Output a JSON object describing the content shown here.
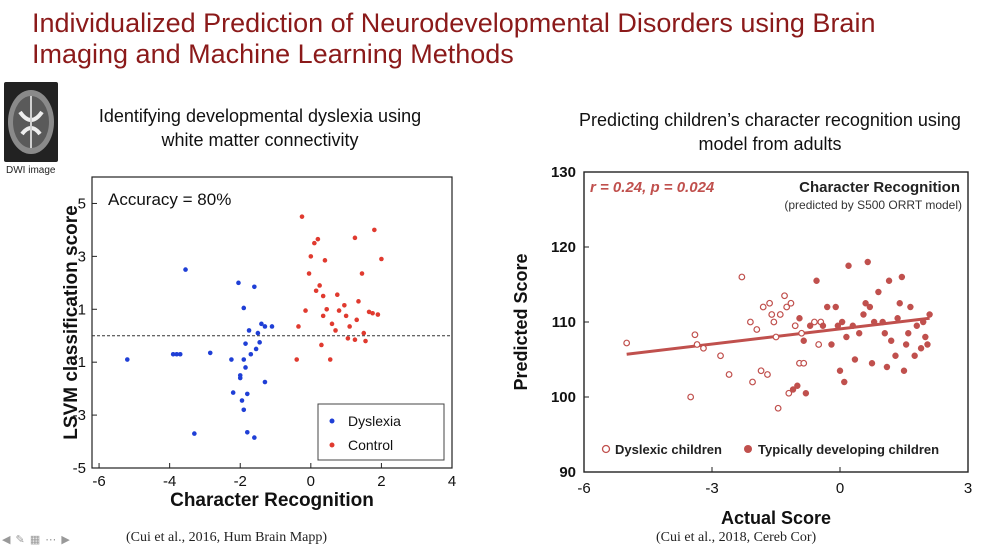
{
  "slide": {
    "title": "Individualized Prediction of Neurodevelopmental Disorders using Brain Imaging and Machine Learning Methods",
    "left_subtitle": "Identifying developmental dyslexia using white matter connectivity",
    "right_subtitle": "Predicting children’s character recognition using model from adults",
    "thumbnail_label": "DWI image",
    "left_citation": "(Cui et al., 2016, Hum Brain Mapp)",
    "right_citation": "(Cui et al., 2018, Cereb Cor)",
    "nav_icons": [
      "arrow-left-icon",
      "pencil-icon",
      "grid-icon",
      "ellipsis-icon",
      "arrow-right-icon"
    ]
  },
  "chart_data": [
    {
      "type": "scatter",
      "xlabel": "Character Recognition",
      "ylabel": "LSVM classification score",
      "xlim": [
        -6.2,
        4
      ],
      "ylim": [
        -5,
        6
      ],
      "xticks": [
        -6,
        -4,
        -2,
        0,
        2,
        4
      ],
      "yticks": [
        -5,
        -3,
        -1,
        1,
        3,
        5
      ],
      "annotation": "Accuracy = 80%",
      "threshold_line": 0,
      "legend_position": "bottom-right",
      "series": [
        {
          "name": "Dyslexia",
          "color": "#1f3fd6",
          "points": [
            [
              -5.2,
              -0.9
            ],
            [
              -3.9,
              -0.7
            ],
            [
              -3.8,
              -0.7
            ],
            [
              -3.7,
              -0.7
            ],
            [
              -3.55,
              2.5
            ],
            [
              -3.3,
              -3.7
            ],
            [
              -2.85,
              -0.65
            ],
            [
              -2.25,
              -0.9
            ],
            [
              -2.2,
              -2.15
            ],
            [
              -2.05,
              2
            ],
            [
              -2.0,
              -1.6
            ],
            [
              -2.0,
              -1.5
            ],
            [
              -1.95,
              -2.45
            ],
            [
              -1.9,
              -2.8
            ],
            [
              -1.9,
              -0.9
            ],
            [
              -1.85,
              -0.3
            ],
            [
              -1.85,
              -1.2
            ],
            [
              -1.8,
              -2.2
            ],
            [
              -1.8,
              -3.65
            ],
            [
              -1.9,
              1.05
            ],
            [
              -1.75,
              0.2
            ],
            [
              -1.7,
              -0.7
            ],
            [
              -1.6,
              -3.85
            ],
            [
              -1.6,
              1.85
            ],
            [
              -1.55,
              -0.5
            ],
            [
              -1.5,
              0.1
            ],
            [
              -1.45,
              -0.25
            ],
            [
              -1.4,
              0.45
            ],
            [
              -1.3,
              0.35
            ],
            [
              -1.3,
              -1.75
            ],
            [
              -1.1,
              0.35
            ]
          ]
        },
        {
          "name": "Control",
          "color": "#e03a2f",
          "points": [
            [
              -0.4,
              -0.9
            ],
            [
              -0.35,
              0.35
            ],
            [
              -0.25,
              4.5
            ],
            [
              -0.15,
              0.95
            ],
            [
              -0.05,
              2.35
            ],
            [
              0.0,
              3.0
            ],
            [
              0.1,
              3.5
            ],
            [
              0.15,
              1.7
            ],
            [
              0.2,
              3.65
            ],
            [
              0.25,
              1.9
            ],
            [
              0.3,
              -0.35
            ],
            [
              0.35,
              1.5
            ],
            [
              0.35,
              0.75
            ],
            [
              0.4,
              2.85
            ],
            [
              0.45,
              1.0
            ],
            [
              0.55,
              -0.9
            ],
            [
              0.6,
              0.45
            ],
            [
              0.7,
              0.2
            ],
            [
              0.75,
              1.55
            ],
            [
              0.8,
              0.95
            ],
            [
              0.95,
              1.15
            ],
            [
              1.0,
              0.75
            ],
            [
              1.05,
              -0.1
            ],
            [
              1.1,
              0.35
            ],
            [
              1.25,
              -0.15
            ],
            [
              1.25,
              3.7
            ],
            [
              1.3,
              0.6
            ],
            [
              1.35,
              1.3
            ],
            [
              1.45,
              2.35
            ],
            [
              1.5,
              0.1
            ],
            [
              1.55,
              -0.2
            ],
            [
              1.65,
              0.9
            ],
            [
              1.75,
              0.85
            ],
            [
              1.8,
              4.0
            ],
            [
              1.9,
              0.8
            ],
            [
              2.0,
              2.9
            ]
          ]
        }
      ]
    },
    {
      "type": "scatter",
      "title": "Character Recognition",
      "subtitle": "(predicted by S500 ORRT model)",
      "xlabel": "Actual Score",
      "ylabel": "Predicted Score",
      "xlim": [
        -6,
        3
      ],
      "ylim": [
        90,
        130
      ],
      "xticks": [
        -6,
        -3,
        0,
        3
      ],
      "yticks": [
        90,
        100,
        110,
        120,
        130
      ],
      "stats_label": "r = 0.24, p = 0.024",
      "fit_line": {
        "x": [
          -5.0,
          2.1
        ],
        "y": [
          105.7,
          110.5
        ],
        "color": "#c0504d"
      },
      "legend_position": "bottom",
      "series": [
        {
          "name": "Dyslexic children",
          "color": "#c0504d",
          "marker": "open-circle",
          "points": [
            [
              -5.0,
              107.2
            ],
            [
              -3.5,
              100.0
            ],
            [
              -3.4,
              108.3
            ],
            [
              -3.35,
              107.0
            ],
            [
              -3.2,
              106.5
            ],
            [
              -2.8,
              105.5
            ],
            [
              -2.6,
              103.0
            ],
            [
              -2.3,
              116.0
            ],
            [
              -2.1,
              110.0
            ],
            [
              -2.05,
              102.0
            ],
            [
              -1.95,
              109.0
            ],
            [
              -1.85,
              103.5
            ],
            [
              -1.8,
              112.0
            ],
            [
              -1.7,
              103.0
            ],
            [
              -1.65,
              112.5
            ],
            [
              -1.6,
              111.0
            ],
            [
              -1.55,
              110.0
            ],
            [
              -1.5,
              108.0
            ],
            [
              -1.45,
              98.5
            ],
            [
              -1.4,
              111.0
            ],
            [
              -1.3,
              113.5
            ],
            [
              -1.25,
              112.0
            ],
            [
              -1.2,
              100.5
            ],
            [
              -1.15,
              112.5
            ],
            [
              -1.05,
              109.5
            ],
            [
              -0.95,
              104.5
            ],
            [
              -0.9,
              108.5
            ],
            [
              -0.85,
              104.5
            ],
            [
              -0.6,
              110.0
            ],
            [
              -0.5,
              107.0
            ],
            [
              -0.45,
              110.0
            ]
          ]
        },
        {
          "name": "Typically developing children",
          "color": "#c0504d",
          "marker": "filled-circle",
          "points": [
            [
              -1.1,
              101.0
            ],
            [
              -1.0,
              101.5
            ],
            [
              -0.95,
              110.5
            ],
            [
              -0.85,
              107.5
            ],
            [
              -0.8,
              100.5
            ],
            [
              -0.7,
              109.5
            ],
            [
              -0.55,
              115.5
            ],
            [
              -0.4,
              109.5
            ],
            [
              -0.3,
              112.0
            ],
            [
              -0.2,
              107.0
            ],
            [
              -0.1,
              112.0
            ],
            [
              -0.05,
              109.5
            ],
            [
              0.0,
              103.5
            ],
            [
              0.05,
              110.0
            ],
            [
              0.1,
              102.0
            ],
            [
              0.15,
              108.0
            ],
            [
              0.2,
              117.5
            ],
            [
              0.3,
              109.5
            ],
            [
              0.35,
              105.0
            ],
            [
              0.45,
              108.5
            ],
            [
              0.55,
              111.0
            ],
            [
              0.6,
              112.5
            ],
            [
              0.65,
              118.0
            ],
            [
              0.7,
              112.0
            ],
            [
              0.75,
              104.5
            ],
            [
              0.8,
              110.0
            ],
            [
              0.9,
              114.0
            ],
            [
              1.0,
              110.0
            ],
            [
              1.05,
              108.5
            ],
            [
              1.1,
              104.0
            ],
            [
              1.15,
              115.5
            ],
            [
              1.2,
              107.5
            ],
            [
              1.3,
              105.5
            ],
            [
              1.35,
              110.5
            ],
            [
              1.4,
              112.5
            ],
            [
              1.45,
              116.0
            ],
            [
              1.5,
              103.5
            ],
            [
              1.55,
              107.0
            ],
            [
              1.6,
              108.5
            ],
            [
              1.65,
              112.0
            ],
            [
              1.75,
              105.5
            ],
            [
              1.8,
              109.5
            ],
            [
              1.9,
              106.5
            ],
            [
              1.95,
              110.0
            ],
            [
              2.0,
              108.0
            ],
            [
              2.05,
              107.0
            ],
            [
              2.1,
              111.0
            ]
          ]
        }
      ]
    }
  ]
}
